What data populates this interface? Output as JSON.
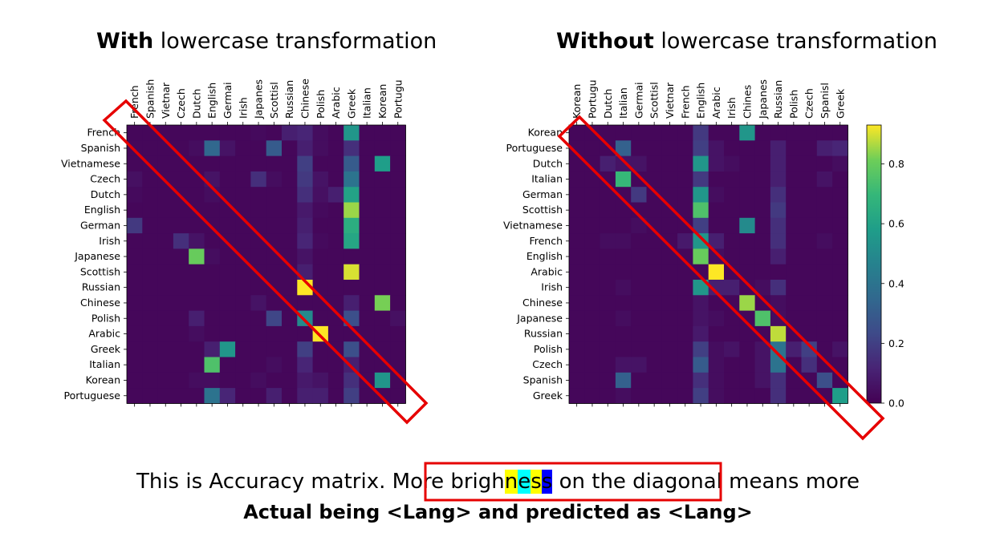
{
  "titles": {
    "left": {
      "bold": "With",
      "rest": " lowercase transformation"
    },
    "right": {
      "bold": "Without",
      "rest": " lowercase transformation"
    }
  },
  "caption": {
    "line1_pre": "This is Accuracy matrix. More brigh",
    "line1_hl": [
      "n",
      "e",
      "s",
      "s"
    ],
    "line1_post": " on the diagonal means more",
    "line1_hl_colors": [
      "#ffff00",
      "#00ffff",
      "#ffff00",
      "#0000ff"
    ],
    "line2": "Actual being <Lang> and predicted as <Lang>",
    "box_color": "#e60000"
  },
  "chart_data": [
    {
      "type": "heatmap",
      "title": "",
      "rows": [
        "French",
        "Spanish",
        "Vietnamese",
        "Czech",
        "Dutch",
        "English",
        "German",
        "Irish",
        "Japanese",
        "Scottish",
        "Russian",
        "Chinese",
        "Polish",
        "Arabic",
        "Greek",
        "Italian",
        "Korean",
        "Portuguese"
      ],
      "columns": [
        "French",
        "Spanish",
        "Vietnamese",
        "Czech",
        "Dutch",
        "English",
        "German",
        "Irish",
        "Japanese",
        "Scottish",
        "Russian",
        "Chinese",
        "Polish",
        "Arabic",
        "Greek",
        "Italian",
        "Korean",
        "Portuguese"
      ],
      "column_labels_visible": [
        "French",
        "Spanish",
        "Vietnar",
        "Czech",
        "Dutch",
        "English",
        "Germai",
        "Irish",
        "Japanes",
        "Scottisl",
        "Russian",
        "Chinese",
        "Polish",
        "Arabic",
        "Greek",
        "Italian",
        "Korean",
        "Portugu"
      ],
      "colormap": "viridis",
      "vmin": 0,
      "vmax": 0.93,
      "values": [
        [
          0.02,
          0.02,
          0.02,
          0.02,
          0.02,
          0.02,
          0.02,
          0.02,
          0.03,
          0.02,
          0.1,
          0.12,
          0.04,
          0.02,
          0.55,
          0.02,
          0.02,
          0.02
        ],
        [
          0.02,
          0.02,
          0.02,
          0.02,
          0.04,
          0.35,
          0.06,
          0.02,
          0.02,
          0.3,
          0.02,
          0.1,
          0.04,
          0.02,
          0.15,
          0.02,
          0.02,
          0.02
        ],
        [
          0.02,
          0.02,
          0.02,
          0.02,
          0.02,
          0.02,
          0.02,
          0.02,
          0.02,
          0.02,
          0.02,
          0.2,
          0.02,
          0.02,
          0.3,
          0.02,
          0.58,
          0.02
        ],
        [
          0.05,
          0.02,
          0.02,
          0.02,
          0.02,
          0.06,
          0.02,
          0.02,
          0.15,
          0.04,
          0.02,
          0.18,
          0.06,
          0.02,
          0.4,
          0.02,
          0.02,
          0.02
        ],
        [
          0.03,
          0.02,
          0.02,
          0.02,
          0.02,
          0.04,
          0.02,
          0.02,
          0.02,
          0.02,
          0.02,
          0.15,
          0.05,
          0.1,
          0.6,
          0.02,
          0.02,
          0.02
        ],
        [
          0.02,
          0.02,
          0.02,
          0.02,
          0.02,
          0.02,
          0.02,
          0.02,
          0.02,
          0.02,
          0.02,
          0.08,
          0.03,
          0.02,
          0.85,
          0.02,
          0.02,
          0.02
        ],
        [
          0.18,
          0.02,
          0.02,
          0.02,
          0.02,
          0.02,
          0.02,
          0.02,
          0.02,
          0.02,
          0.02,
          0.1,
          0.02,
          0.02,
          0.65,
          0.02,
          0.02,
          0.02
        ],
        [
          0.02,
          0.02,
          0.02,
          0.15,
          0.06,
          0.02,
          0.02,
          0.02,
          0.02,
          0.02,
          0.02,
          0.12,
          0.03,
          0.02,
          0.62,
          0.02,
          0.02,
          0.02
        ],
        [
          0.02,
          0.02,
          0.02,
          0.02,
          0.8,
          0.04,
          0.02,
          0.02,
          0.02,
          0.02,
          0.02,
          0.06,
          0.02,
          0.02,
          0.02,
          0.02,
          0.02,
          0.02
        ],
        [
          0.02,
          0.02,
          0.02,
          0.02,
          0.02,
          0.02,
          0.02,
          0.02,
          0.02,
          0.02,
          0.02,
          0.1,
          0.02,
          0.02,
          0.9,
          0.02,
          0.02,
          0.02
        ],
        [
          0.02,
          0.02,
          0.02,
          0.02,
          0.02,
          0.02,
          0.02,
          0.02,
          0.02,
          0.02,
          0.02,
          0.93,
          0.02,
          0.02,
          0.02,
          0.02,
          0.02,
          0.02
        ],
        [
          0.02,
          0.02,
          0.02,
          0.02,
          0.02,
          0.02,
          0.02,
          0.02,
          0.06,
          0.02,
          0.02,
          0.02,
          0.02,
          0.02,
          0.1,
          0.02,
          0.82,
          0.02
        ],
        [
          0.02,
          0.02,
          0.02,
          0.02,
          0.1,
          0.02,
          0.02,
          0.02,
          0.02,
          0.22,
          0.02,
          0.5,
          0.02,
          0.02,
          0.25,
          0.02,
          0.02,
          0.05
        ],
        [
          0.02,
          0.02,
          0.02,
          0.02,
          0.04,
          0.02,
          0.02,
          0.02,
          0.02,
          0.02,
          0.02,
          0.02,
          0.93,
          0.02,
          0.02,
          0.02,
          0.02,
          0.02
        ],
        [
          0.02,
          0.02,
          0.02,
          0.02,
          0.02,
          0.1,
          0.55,
          0.02,
          0.02,
          0.02,
          0.02,
          0.2,
          0.02,
          0.02,
          0.25,
          0.02,
          0.02,
          0.02
        ],
        [
          0.02,
          0.02,
          0.02,
          0.02,
          0.02,
          0.75,
          0.02,
          0.02,
          0.02,
          0.04,
          0.02,
          0.12,
          0.02,
          0.02,
          0.1,
          0.02,
          0.02,
          0.02
        ],
        [
          0.02,
          0.02,
          0.02,
          0.02,
          0.04,
          0.04,
          0.02,
          0.02,
          0.04,
          0.02,
          0.02,
          0.08,
          0.06,
          0.02,
          0.15,
          0.02,
          0.55,
          0.02
        ],
        [
          0.02,
          0.02,
          0.02,
          0.02,
          0.02,
          0.4,
          0.12,
          0.02,
          0.02,
          0.1,
          0.02,
          0.1,
          0.1,
          0.02,
          0.2,
          0.02,
          0.02,
          0.02
        ]
      ]
    },
    {
      "type": "heatmap",
      "title": "",
      "rows": [
        "Korean",
        "Portuguese",
        "Dutch",
        "Italian",
        "German",
        "Scottish",
        "Vietnamese",
        "French",
        "English",
        "Arabic",
        "Irish",
        "Chinese",
        "Japanese",
        "Russian",
        "Polish",
        "Czech",
        "Spanish",
        "Greek"
      ],
      "columns": [
        "Korean",
        "Portuguese",
        "Dutch",
        "Italian",
        "German",
        "Scottish",
        "Vietnamese",
        "French",
        "English",
        "Arabic",
        "Irish",
        "Chinese",
        "Japanese",
        "Russian",
        "Polish",
        "Czech",
        "Spanish",
        "Greek"
      ],
      "column_labels_visible": [
        "Korean",
        "Portugu",
        "Dutch",
        "Italian",
        "Germai",
        "Scottisl",
        "Vietnar",
        "French",
        "English",
        "Arabic",
        "Irish",
        "Chines",
        "Japanes",
        "Russian",
        "Polish",
        "Czech",
        "Spanisl",
        "Greek"
      ],
      "colormap": "viridis",
      "vmin": 0,
      "vmax": 0.93,
      "values": [
        [
          0.02,
          0.02,
          0.02,
          0.02,
          0.02,
          0.02,
          0.02,
          0.02,
          0.18,
          0.02,
          0.02,
          0.55,
          0.02,
          0.02,
          0.02,
          0.02,
          0.02,
          0.02
        ],
        [
          0.02,
          0.02,
          0.02,
          0.32,
          0.02,
          0.02,
          0.02,
          0.02,
          0.2,
          0.06,
          0.02,
          0.02,
          0.02,
          0.1,
          0.02,
          0.02,
          0.1,
          0.12
        ],
        [
          0.02,
          0.02,
          0.1,
          0.06,
          0.06,
          0.02,
          0.02,
          0.02,
          0.55,
          0.06,
          0.04,
          0.02,
          0.02,
          0.1,
          0.02,
          0.02,
          0.02,
          0.04
        ],
        [
          0.02,
          0.02,
          0.02,
          0.7,
          0.02,
          0.02,
          0.02,
          0.02,
          0.18,
          0.02,
          0.02,
          0.02,
          0.02,
          0.1,
          0.02,
          0.02,
          0.06,
          0.02
        ],
        [
          0.02,
          0.02,
          0.02,
          0.02,
          0.18,
          0.02,
          0.02,
          0.02,
          0.55,
          0.04,
          0.02,
          0.02,
          0.02,
          0.15,
          0.02,
          0.02,
          0.02,
          0.02
        ],
        [
          0.02,
          0.02,
          0.02,
          0.02,
          0.02,
          0.02,
          0.02,
          0.02,
          0.75,
          0.02,
          0.02,
          0.02,
          0.02,
          0.18,
          0.02,
          0.02,
          0.02,
          0.02
        ],
        [
          0.02,
          0.02,
          0.02,
          0.02,
          0.04,
          0.02,
          0.02,
          0.02,
          0.2,
          0.02,
          0.02,
          0.5,
          0.02,
          0.15,
          0.02,
          0.02,
          0.02,
          0.02
        ],
        [
          0.02,
          0.02,
          0.04,
          0.04,
          0.02,
          0.02,
          0.02,
          0.08,
          0.55,
          0.1,
          0.02,
          0.02,
          0.02,
          0.15,
          0.02,
          0.02,
          0.04,
          0.02
        ],
        [
          0.02,
          0.02,
          0.02,
          0.02,
          0.02,
          0.02,
          0.02,
          0.02,
          0.8,
          0.04,
          0.02,
          0.02,
          0.02,
          0.1,
          0.02,
          0.02,
          0.02,
          0.02
        ],
        [
          0.02,
          0.02,
          0.02,
          0.02,
          0.02,
          0.02,
          0.02,
          0.02,
          0.02,
          0.93,
          0.02,
          0.02,
          0.02,
          0.02,
          0.02,
          0.02,
          0.02,
          0.02
        ],
        [
          0.02,
          0.02,
          0.02,
          0.04,
          0.02,
          0.02,
          0.02,
          0.02,
          0.55,
          0.1,
          0.1,
          0.02,
          0.04,
          0.15,
          0.02,
          0.02,
          0.02,
          0.02
        ],
        [
          0.02,
          0.02,
          0.02,
          0.02,
          0.02,
          0.02,
          0.02,
          0.02,
          0.06,
          0.02,
          0.02,
          0.85,
          0.02,
          0.04,
          0.02,
          0.02,
          0.02,
          0.02
        ],
        [
          0.02,
          0.02,
          0.02,
          0.04,
          0.02,
          0.02,
          0.02,
          0.02,
          0.06,
          0.04,
          0.02,
          0.02,
          0.75,
          0.04,
          0.02,
          0.02,
          0.02,
          0.02
        ],
        [
          0.02,
          0.02,
          0.02,
          0.02,
          0.02,
          0.02,
          0.02,
          0.02,
          0.08,
          0.02,
          0.02,
          0.02,
          0.02,
          0.88,
          0.02,
          0.02,
          0.02,
          0.02
        ],
        [
          0.02,
          0.02,
          0.02,
          0.02,
          0.02,
          0.02,
          0.02,
          0.02,
          0.2,
          0.04,
          0.06,
          0.02,
          0.06,
          0.4,
          0.1,
          0.2,
          0.02,
          0.06
        ],
        [
          0.02,
          0.02,
          0.02,
          0.06,
          0.06,
          0.02,
          0.02,
          0.02,
          0.3,
          0.04,
          0.02,
          0.02,
          0.06,
          0.4,
          0.02,
          0.15,
          0.02,
          0.02
        ],
        [
          0.02,
          0.02,
          0.02,
          0.32,
          0.02,
          0.02,
          0.02,
          0.02,
          0.15,
          0.04,
          0.02,
          0.02,
          0.06,
          0.15,
          0.02,
          0.02,
          0.25,
          0.02
        ],
        [
          0.02,
          0.02,
          0.02,
          0.04,
          0.02,
          0.02,
          0.02,
          0.02,
          0.2,
          0.04,
          0.02,
          0.02,
          0.02,
          0.15,
          0.02,
          0.02,
          0.02,
          0.58
        ]
      ]
    }
  ],
  "colorbar": {
    "ticks": [
      0.0,
      0.2,
      0.4,
      0.6,
      0.8
    ],
    "tick_labels": [
      "0.0",
      "0.2",
      "0.4",
      "0.6",
      "0.8"
    ],
    "vmin": 0,
    "vmax": 0.93
  },
  "annotation_color": "#e60000"
}
